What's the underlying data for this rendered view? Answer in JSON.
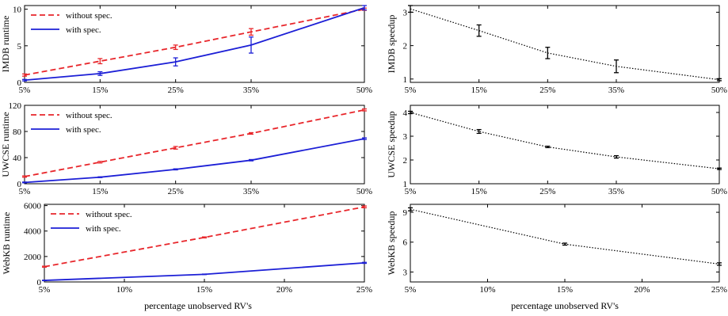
{
  "chart_data": [
    {
      "type": "line",
      "ylabel": "IMDB runtime",
      "xlabel": "",
      "categories": [
        "5%",
        "15%",
        "25%",
        "35%",
        "50%"
      ],
      "x": [
        5,
        15,
        25,
        35,
        50
      ],
      "ylim": [
        0,
        10.5
      ],
      "yticks": [
        "0",
        "5",
        "10"
      ],
      "ytick_values": [
        0,
        5,
        10
      ],
      "legend": "top-left",
      "series": [
        {
          "name": "without spec.",
          "color": "#e8262b",
          "dash": "dashed",
          "values": [
            1,
            2.9,
            4.8,
            6.9,
            10
          ],
          "err": [
            0.15,
            0.35,
            0.3,
            0.45,
            0.15
          ]
        },
        {
          "name": "with spec.",
          "color": "#1c1fd6",
          "dash": "solid",
          "values": [
            0.3,
            1.2,
            2.8,
            5.1,
            10.2
          ],
          "err": [
            0.1,
            0.25,
            0.55,
            1.1,
            0.3
          ]
        }
      ]
    },
    {
      "type": "line",
      "ylabel": "IMDB speedup",
      "xlabel": "",
      "categories": [
        "5%",
        "15%",
        "25%",
        "35%",
        "50%"
      ],
      "x": [
        5,
        15,
        25,
        35,
        50
      ],
      "ylim": [
        0.9,
        3.2
      ],
      "yticks": [
        "1",
        "2",
        "3"
      ],
      "ytick_values": [
        1,
        2,
        3
      ],
      "series": [
        {
          "color": "#000000",
          "dash": "dotted",
          "values": [
            3.1,
            2.45,
            1.78,
            1.38,
            0.98
          ],
          "err": [
            0.1,
            0.17,
            0.17,
            0.19,
            0.03
          ]
        }
      ]
    },
    {
      "type": "line",
      "ylabel": "UWCSE runtime",
      "xlabel": "",
      "categories": [
        "5%",
        "15%",
        "25%",
        "35%",
        "50%"
      ],
      "x": [
        5,
        15,
        25,
        35,
        50
      ],
      "ylim": [
        0,
        120
      ],
      "yticks": [
        "0",
        "40",
        "80",
        "120"
      ],
      "ytick_values": [
        0,
        40,
        80,
        120
      ],
      "legend": "top-left",
      "series": [
        {
          "name": "without spec.",
          "color": "#e8262b",
          "dash": "dashed",
          "values": [
            11,
            33,
            55,
            77,
            113
          ],
          "err": [
            1,
            1.2,
            2,
            1.2,
            1.5
          ]
        },
        {
          "name": "with spec.",
          "color": "#1c1fd6",
          "dash": "solid",
          "values": [
            2,
            10,
            22,
            36,
            69
          ],
          "err": [
            0.6,
            0.6,
            0.8,
            1,
            1.2
          ]
        }
      ]
    },
    {
      "type": "line",
      "ylabel": "UWCSE speedup",
      "xlabel": "",
      "categories": [
        "5%",
        "15%",
        "25%",
        "35%",
        "50%"
      ],
      "x": [
        5,
        15,
        25,
        35,
        50
      ],
      "ylim": [
        1,
        4.3
      ],
      "yticks": [
        "1",
        "2",
        "3",
        "4"
      ],
      "ytick_values": [
        1,
        2,
        3,
        4
      ],
      "series": [
        {
          "color": "#000000",
          "dash": "dotted",
          "values": [
            4.0,
            3.2,
            2.55,
            2.13,
            1.63
          ],
          "err": [
            0.05,
            0.08,
            0.03,
            0.05,
            0.03
          ]
        }
      ]
    },
    {
      "type": "line",
      "ylabel": "WebKB runtime",
      "xlabel": "percentage unobserved RV's",
      "categories": [
        "5%",
        "10%",
        "15%",
        "20%",
        "25%"
      ],
      "x": [
        5,
        10,
        15,
        20,
        25
      ],
      "ylim": [
        0,
        6100
      ],
      "yticks": [
        "0",
        "2000",
        "4000",
        "6000"
      ],
      "ytick_values": [
        0,
        2000,
        4000,
        6000
      ],
      "legend": "top-left",
      "series": [
        {
          "name": "without spec.",
          "color": "#e8262b",
          "dash": "dashed",
          "values": [
            1200,
            3500,
            5900
          ],
          "err": [
            40,
            40,
            70
          ],
          "x": [
            5,
            15,
            25
          ]
        },
        {
          "name": "with spec.",
          "color": "#1c1fd6",
          "dash": "solid",
          "values": [
            120,
            600,
            1500
          ],
          "err": [
            20,
            20,
            40
          ],
          "x": [
            5,
            15,
            25
          ]
        }
      ]
    },
    {
      "type": "line",
      "ylabel": "WebKB speedup",
      "xlabel": "percentage unobserved RV's",
      "categories": [
        "5%",
        "10%",
        "15%",
        "20%",
        "25%"
      ],
      "x": [
        5,
        10,
        15,
        20,
        25
      ],
      "ylim": [
        2,
        9.8
      ],
      "yticks": [
        "3",
        "6",
        "9"
      ],
      "ytick_values": [
        3,
        6,
        9
      ],
      "series": [
        {
          "color": "#000000",
          "dash": "dotted",
          "values": [
            9.3,
            5.8,
            3.8
          ],
          "err": [
            0.15,
            0.1,
            0.12
          ],
          "x": [
            5,
            15,
            25
          ]
        }
      ]
    }
  ]
}
